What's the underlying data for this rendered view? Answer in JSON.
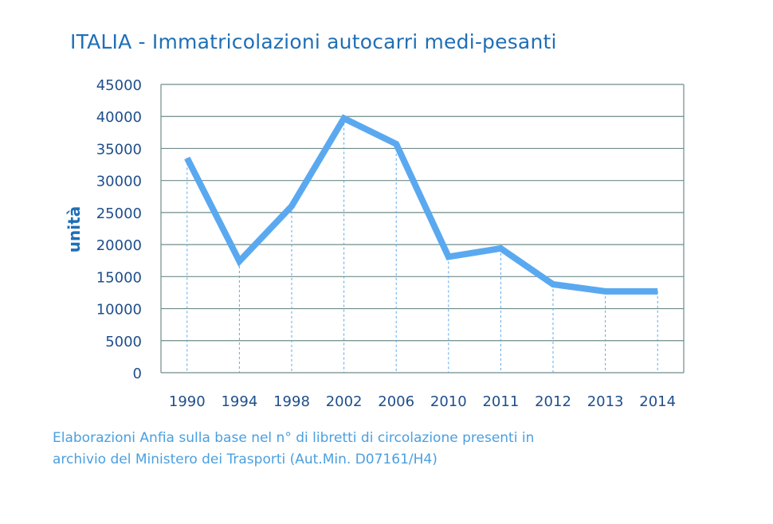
{
  "chart_data": {
    "type": "line",
    "title": "ITALIA - Immatricolazioni autocarri medi-pesanti",
    "xlabel": "",
    "ylabel": "unità",
    "categories": [
      "1990",
      "1994",
      "1998",
      "2002",
      "2006",
      "2010",
      "2011",
      "2012",
      "2013",
      "2014"
    ],
    "series": [
      {
        "values": [
          33500,
          17400,
          26000,
          39700,
          35700,
          18100,
          19400,
          13800,
          12700,
          12700
        ]
      }
    ],
    "ylim": [
      0,
      45000
    ],
    "yticks": [
      0,
      5000,
      10000,
      15000,
      20000,
      25000,
      30000,
      35000,
      40000,
      45000
    ],
    "grid": true,
    "line_color": "#5aa9f0",
    "grid_color": "#6f8c8a",
    "drop_line_color": "#5aa9f0"
  },
  "footnote": {
    "line1": "Elaborazioni Anfia sulla  base nel n° di libretti  di circolazione presenti in",
    "line2": "archivio del Ministero dei Trasporti (Aut.Min. D07161/H4)"
  }
}
